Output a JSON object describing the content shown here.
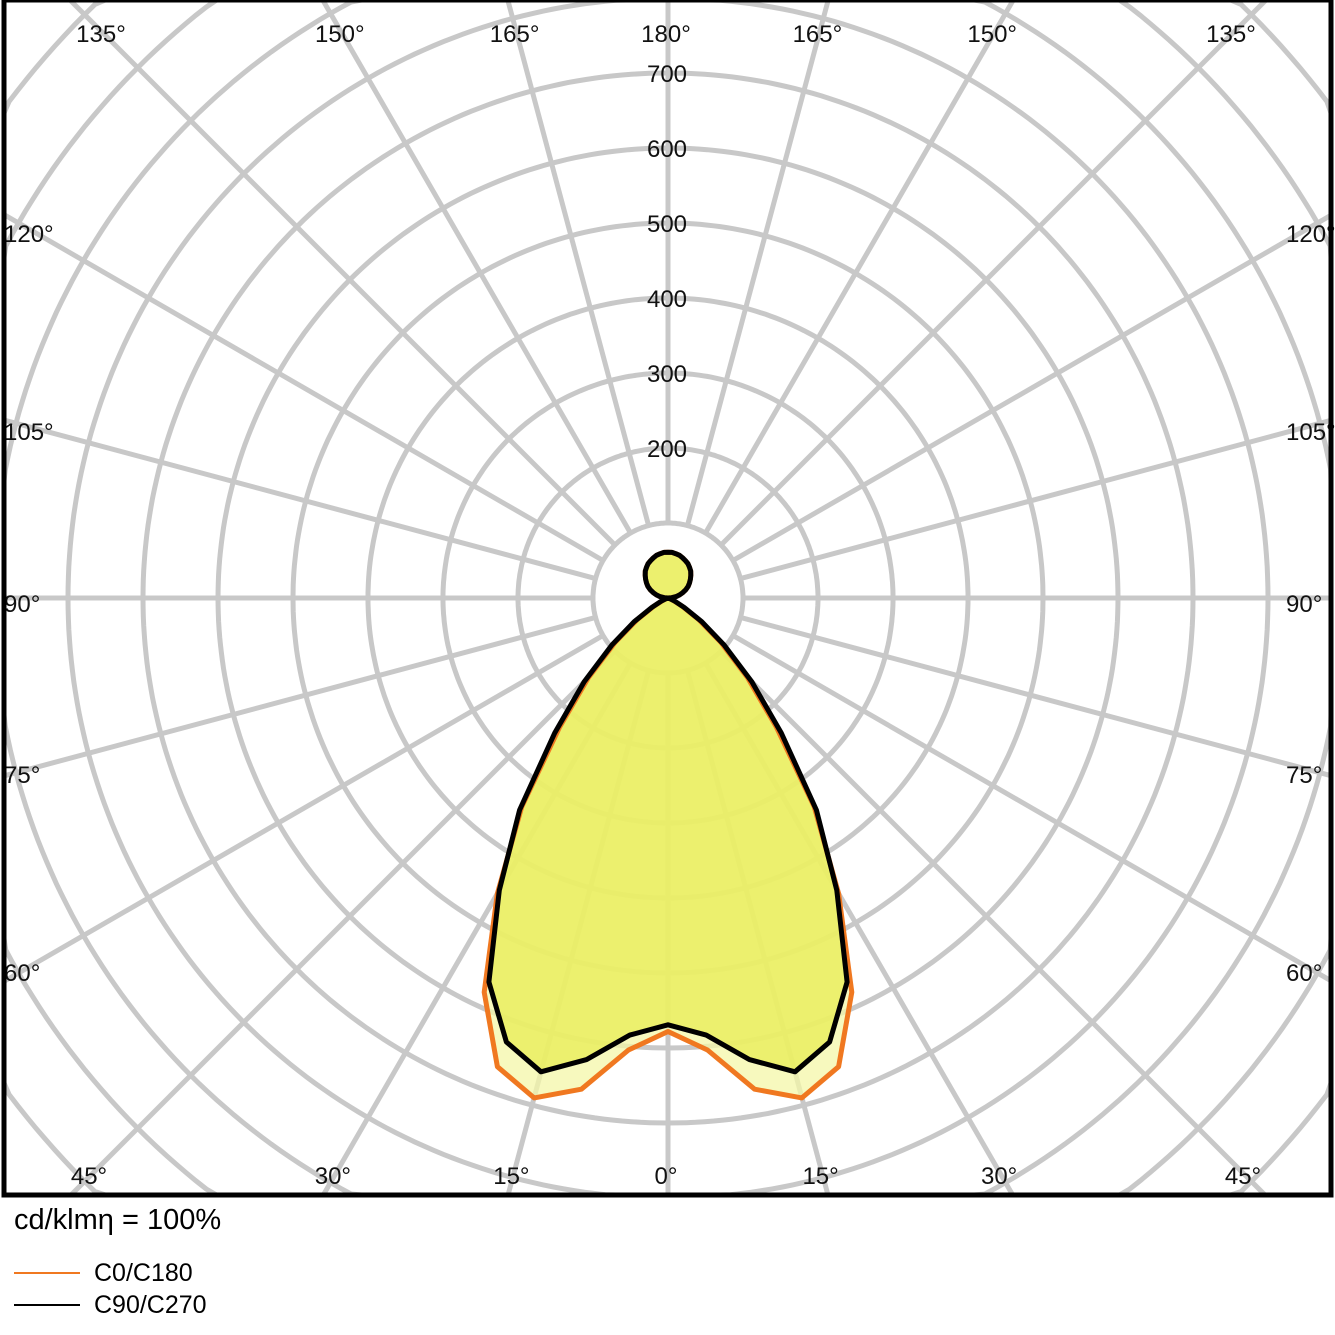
{
  "chart_data": {
    "type": "polar",
    "unit_label": "cd/klmη = 100%",
    "radial_ticks": [
      200,
      300,
      400,
      500,
      600,
      700
    ],
    "radial_step": 100,
    "grid": true,
    "angle_labels": {
      "top": [
        "135°",
        "150°",
        "165°",
        "180°",
        "165°",
        "150°",
        "135°"
      ],
      "left": [
        "120°",
        "105°",
        "90°",
        "75°",
        "60°"
      ],
      "right": [
        "120°",
        "105°",
        "90°",
        "75°",
        "60°"
      ],
      "bottom": [
        "45°",
        "30°",
        "15°",
        "0°",
        "15°",
        "30°",
        "45°"
      ]
    },
    "gamma_deg": [
      0,
      5,
      10,
      15,
      20,
      25,
      30,
      35,
      40,
      45,
      50,
      55,
      60,
      65,
      70,
      75,
      80,
      85,
      90,
      95,
      100,
      105,
      110,
      115,
      120,
      125,
      130,
      135,
      140,
      145,
      150,
      155,
      160,
      165,
      170,
      175,
      180
    ],
    "series": [
      {
        "name": "C0/C180",
        "color": "#f07820",
        "fill": "#f4f7a8",
        "values": [
          578,
          605,
          665,
          690,
          665,
          580,
          455,
          340,
          225,
          150,
          92,
          50,
          22,
          8,
          2,
          0,
          0,
          0,
          0,
          5,
          11,
          16,
          21,
          26,
          31,
          35,
          39,
          43,
          47,
          50,
          53,
          55,
          57,
          59,
          60,
          61,
          61
        ]
      },
      {
        "name": "C90/C270",
        "color": "#000000",
        "fill": "#e8ee5a",
        "values": [
          569,
          585,
          625,
          654,
          630,
          565,
          450,
          345,
          235,
          158,
          98,
          55,
          25,
          10,
          3,
          0,
          0,
          0,
          0,
          5,
          11,
          16,
          21,
          26,
          31,
          35,
          39,
          43,
          47,
          50,
          53,
          55,
          57,
          59,
          60,
          61,
          61
        ]
      }
    ]
  }
}
